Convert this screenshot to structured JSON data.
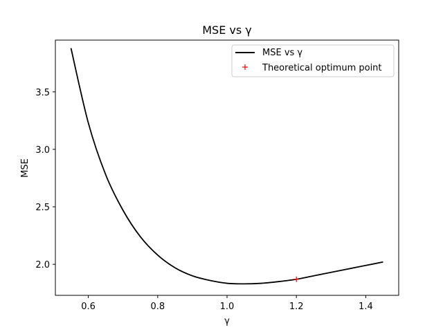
{
  "chart_data": {
    "type": "line",
    "title": "MSE vs γ",
    "xlabel": "γ",
    "ylabel": "MSE",
    "xlim": [
      0.505,
      1.495
    ],
    "ylim": [
      1.73,
      3.95
    ],
    "xticks": [
      0.6,
      0.8,
      1.0,
      1.2,
      1.4
    ],
    "xtick_labels": [
      "0.6",
      "0.8",
      "1.0",
      "1.2",
      "1.4"
    ],
    "yticks": [
      2.0,
      2.5,
      3.0,
      3.5
    ],
    "ytick_labels": [
      "2.0",
      "2.5",
      "3.0",
      "3.5"
    ],
    "grid": false,
    "legend_position": "top-right",
    "series": [
      {
        "name": "MSE vs γ",
        "kind": "line",
        "color": "#000000",
        "x": [
          0.55,
          0.6,
          0.65,
          0.7,
          0.75,
          0.8,
          0.85,
          0.9,
          0.95,
          1.0,
          1.05,
          1.1,
          1.15,
          1.2,
          1.25,
          1.3,
          1.35,
          1.4,
          1.45
        ],
        "y": [
          3.88,
          3.23,
          2.78,
          2.47,
          2.24,
          2.08,
          1.97,
          1.9,
          1.86,
          1.835,
          1.83,
          1.835,
          1.85,
          1.87,
          1.9,
          1.93,
          1.96,
          1.99,
          2.02
        ]
      },
      {
        "name": "Theoretical optimum point",
        "kind": "marker",
        "marker": "+",
        "color": "#ff0000",
        "x": [
          1.2
        ],
        "y": [
          1.87
        ]
      }
    ]
  }
}
